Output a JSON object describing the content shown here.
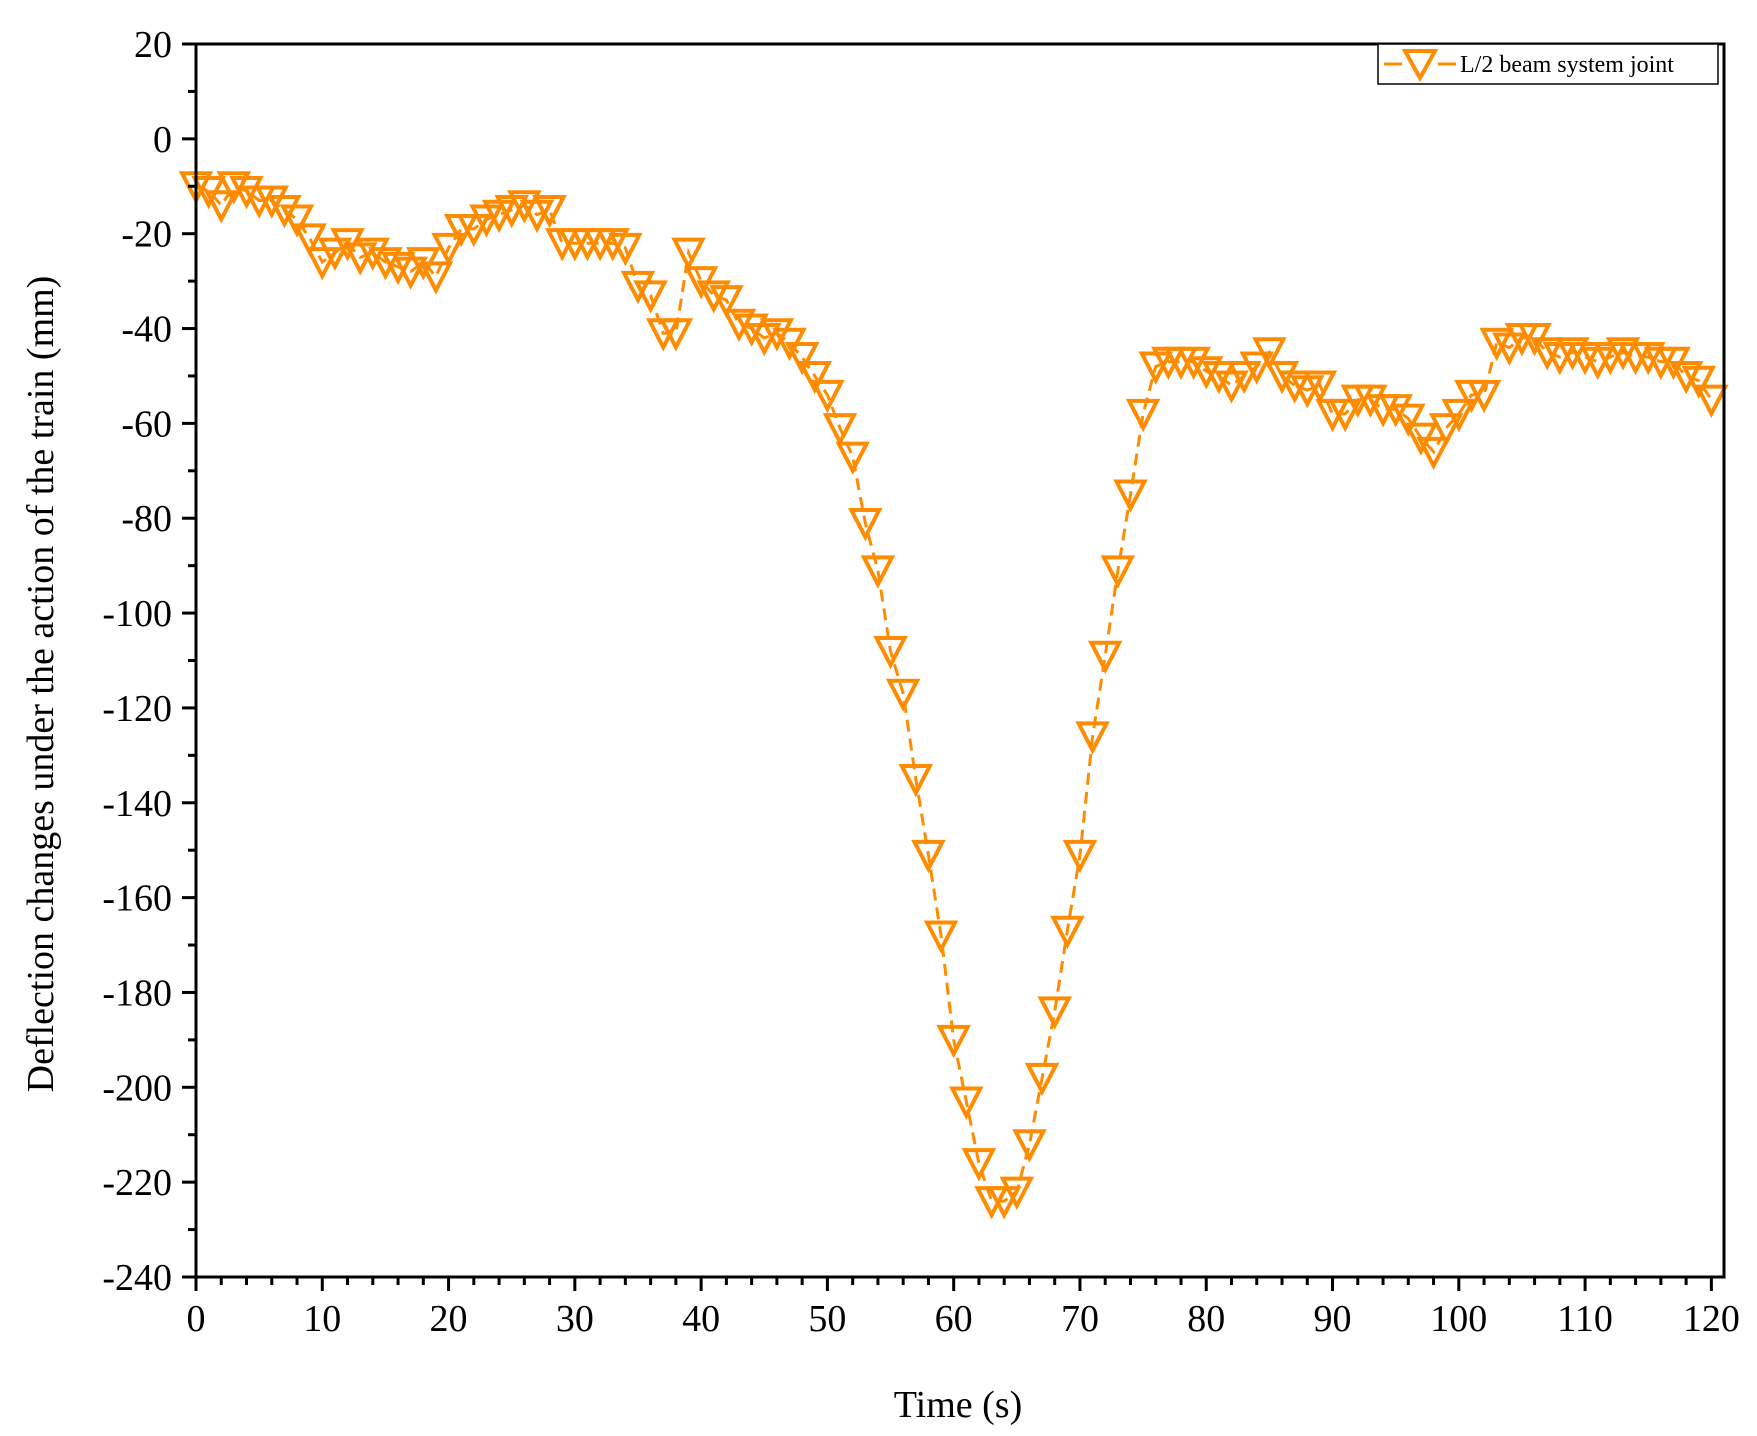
{
  "chart_data": {
    "type": "line",
    "title": "",
    "xlabel": "Time (s)",
    "ylabel": "Deflection changes under the action of the train (mm)",
    "xlim": [
      0,
      121
    ],
    "ylim": [
      -240,
      20
    ],
    "xticks": [
      0,
      10,
      20,
      30,
      40,
      50,
      60,
      70,
      80,
      90,
      100,
      110,
      120
    ],
    "yticks": [
      20,
      0,
      -20,
      -40,
      -60,
      -80,
      -100,
      -120,
      -140,
      -160,
      -180,
      -200,
      -220,
      -240
    ],
    "xtick_labels": [
      "0",
      "10",
      "20",
      "30",
      "40",
      "50",
      "60",
      "70",
      "80",
      "90",
      "100",
      "110",
      "120"
    ],
    "ytick_labels": [
      "20",
      "0",
      "-20",
      "-40",
      "-60",
      "-80",
      "-100",
      "-120",
      "-140",
      "-160",
      "-180",
      "-200",
      "-220",
      "-240"
    ],
    "legend_position": "top-right",
    "colors": {
      "series": "#FF8C00",
      "axis": "#000000"
    },
    "series": [
      {
        "name": "L/2 beam system joint",
        "marker": "down-triangle-open",
        "x": [
          0,
          1,
          2,
          3,
          4,
          5,
          6,
          7,
          8,
          9,
          10,
          11,
          12,
          13,
          14,
          15,
          16,
          17,
          18,
          19,
          20,
          21,
          22,
          23,
          24,
          25,
          26,
          27,
          28,
          29,
          30,
          31,
          32,
          33,
          34,
          35,
          36,
          37,
          38,
          39,
          40,
          41,
          42,
          43,
          44,
          45,
          46,
          47,
          48,
          49,
          50,
          51,
          52,
          53,
          54,
          55,
          56,
          57,
          58,
          59,
          60,
          61,
          62,
          63,
          64,
          65,
          66,
          67,
          68,
          69,
          70,
          71,
          72,
          73,
          74,
          75,
          76,
          77,
          78,
          79,
          80,
          81,
          82,
          83,
          84,
          85,
          86,
          87,
          88,
          89,
          90,
          91,
          92,
          93,
          94,
          95,
          96,
          97,
          98,
          99,
          100,
          101,
          102,
          103,
          104,
          105,
          106,
          107,
          108,
          109,
          110,
          111,
          112,
          113,
          114,
          115,
          116,
          117,
          118,
          119,
          120
        ],
        "values": [
          -10,
          -11,
          -14,
          -10,
          -11,
          -13,
          -13,
          -15,
          -17,
          -21,
          -26,
          -24,
          -22,
          -25,
          -24,
          -26,
          -27,
          -28,
          -26,
          -29,
          -23,
          -19,
          -19,
          -17,
          -16,
          -15,
          -14,
          -16,
          -15,
          -22,
          -22,
          -22,
          -22,
          -22,
          -23,
          -31,
          -33,
          -41,
          -41,
          -24,
          -30,
          -33,
          -34,
          -39,
          -40,
          -42,
          -41,
          -43,
          -46,
          -50,
          -54,
          -61,
          -67,
          -81,
          -91,
          -108,
          -117,
          -135,
          -151,
          -168,
          -190,
          -203,
          -216,
          -224,
          -224,
          -222,
          -212,
          -198,
          -184,
          -167,
          -151,
          -126,
          -109,
          -91,
          -75,
          -58,
          -48,
          -47,
          -47,
          -47,
          -49,
          -50,
          -52,
          -50,
          -48,
          -45,
          -50,
          -52,
          -53,
          -52,
          -58,
          -58,
          -55,
          -55,
          -57,
          -57,
          -59,
          -63,
          -66,
          -61,
          -58,
          -54,
          -54,
          -43,
          -44,
          -42,
          -42,
          -45,
          -46,
          -45,
          -46,
          -47,
          -46,
          -45,
          -46,
          -46,
          -47,
          -47,
          -50,
          -51,
          -55
        ]
      }
    ]
  }
}
